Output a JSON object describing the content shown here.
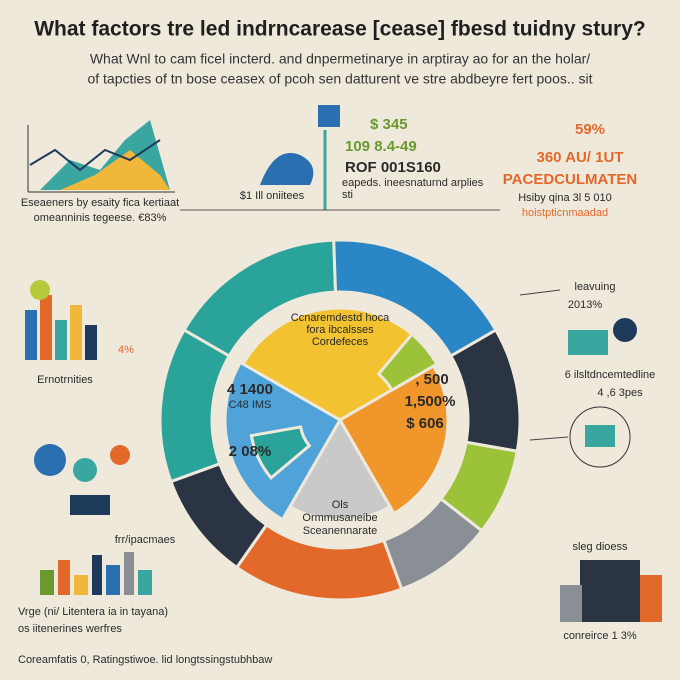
{
  "header": {
    "title": "What factors tre led indrncarease [cease] fbesd tuidny stury?",
    "subtitle": [
      "What Wnl to cam ficel incterd. and dnpermetinarye in arptiray ao for an the holar/",
      "of tapcties of tn bose ceasex of pcoh sen datturent ve stre abdbeyre fert poos.. sit"
    ]
  },
  "top_left": [
    "Eseaeners by esaity fica kertiaat",
    "omeanninis tegeese. €83%"
  ],
  "top_center": [
    "$ 345",
    "109 8.4-49",
    "ROF 001S160",
    "eapeds. ineesnaturnd arplies",
    "sti",
    "$1 Ill oniitees"
  ],
  "top_right": [
    "59%",
    "360 AU/ 1UT",
    "PACEDCULMATEN",
    "Hsiby qina 3l 5 010",
    "hoistpticnmaadad"
  ],
  "left": [
    "4%",
    "Ernotrnities"
  ],
  "bottom_left": [
    "frr/ipacmaes",
    "Vrge (ni/ Litentera ia in tayana)",
    "os iitenerines werfres"
  ],
  "right": [
    "leavuing",
    "2013%",
    "6 ilsltdncemtedline",
    "4 ,6 3pes"
  ],
  "bottom_right": [
    "sleg dioess",
    "conreirce 1 3%"
  ],
  "center": [
    "Ccnaremdestd hoca",
    "fora ibcalsses",
    "Cordefeces",
    "4 1400",
    "C48 IMS",
    "2 08%",
    ", 500",
    "1,500%",
    "$ 606",
    "Ols",
    "Ormmusaneibe",
    "Sceanennarate"
  ],
  "footer": "Coreamfatis 0, Ratingstiwoe. lid longtssingstubhbaw"
}
